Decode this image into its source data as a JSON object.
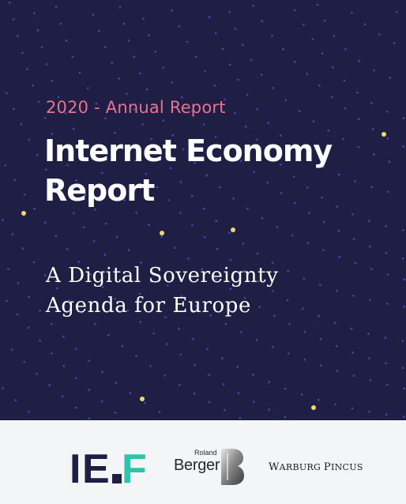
{
  "cover": {
    "kicker": "2020 - Annual Report",
    "title_line1": "Internet Economy",
    "title_line2": "Report",
    "subtitle_line1": "A Digital Sovereignty",
    "subtitle_line2": "Agenda for Europe"
  },
  "colors": {
    "background": "#1f1f45",
    "kicker": "#e8738f",
    "title": "#ffffff",
    "dots": "#4f57d6",
    "highlight_dots": "#f2d86a",
    "footer": "#f4f5f7",
    "ief_dark": "#1f1f45",
    "ief_accent": "#2ec4a9"
  },
  "logos": {
    "ief": {
      "letters": [
        "I",
        "E",
        "F"
      ]
    },
    "roland_berger": {
      "small": "Roland",
      "big": "Berger"
    },
    "warburg_pincus": {
      "w": "W",
      "arburg": "ARBURG",
      "p": "P",
      "incus": "INCUS"
    }
  }
}
